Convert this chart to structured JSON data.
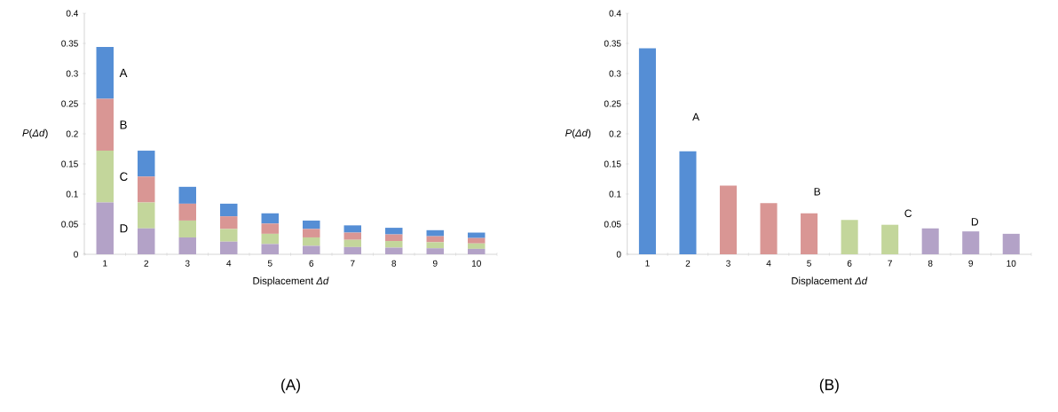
{
  "chart_data": [
    {
      "type": "bar",
      "stacked": true,
      "title": "(A)",
      "xlabel": "Displacement *Δd*",
      "ylabel": "*P*(*Δd*)",
      "categories": [
        "1",
        "2",
        "3",
        "4",
        "5",
        "6",
        "7",
        "8",
        "9",
        "10"
      ],
      "series": [
        {
          "name": "D",
          "color": "#b3a2c7",
          "values": [
            0.086,
            0.043,
            0.028,
            0.021,
            0.017,
            0.014,
            0.012,
            0.011,
            0.01,
            0.009
          ]
        },
        {
          "name": "C",
          "color": "#c3d69b",
          "values": [
            0.086,
            0.043,
            0.028,
            0.021,
            0.017,
            0.014,
            0.012,
            0.011,
            0.01,
            0.009
          ]
        },
        {
          "name": "B",
          "color": "#d99694",
          "values": [
            0.086,
            0.043,
            0.028,
            0.021,
            0.017,
            0.014,
            0.012,
            0.011,
            0.01,
            0.009
          ]
        },
        {
          "name": "A",
          "color": "#558ed5",
          "values": [
            0.086,
            0.043,
            0.028,
            0.021,
            0.017,
            0.014,
            0.012,
            0.011,
            0.01,
            0.009
          ]
        }
      ],
      "ylim": [
        0,
        0.4
      ],
      "yticks": [
        0,
        0.05,
        0.1,
        0.15,
        0.2,
        0.25,
        0.3,
        0.35,
        0.4
      ]
    },
    {
      "type": "bar",
      "title": "(B)",
      "xlabel": "Displacement *Δd*",
      "ylabel": "*P*(*Δd*)",
      "categories": [
        "1",
        "2",
        "3",
        "4",
        "5",
        "6",
        "7",
        "8",
        "9",
        "10"
      ],
      "values": [
        0.342,
        0.171,
        0.114,
        0.085,
        0.068,
        0.057,
        0.049,
        0.043,
        0.038,
        0.034
      ],
      "colors": [
        "#558ed5",
        "#558ed5",
        "#d99694",
        "#d99694",
        "#d99694",
        "#c3d69b",
        "#c3d69b",
        "#b3a2c7",
        "#b3a2c7",
        "#b3a2c7"
      ],
      "annotations": [
        "A",
        "B",
        "C",
        "D"
      ],
      "ylim": [
        0,
        0.4
      ],
      "yticks": [
        0,
        0.05,
        0.1,
        0.15,
        0.2,
        0.25,
        0.3,
        0.35,
        0.4
      ]
    }
  ]
}
